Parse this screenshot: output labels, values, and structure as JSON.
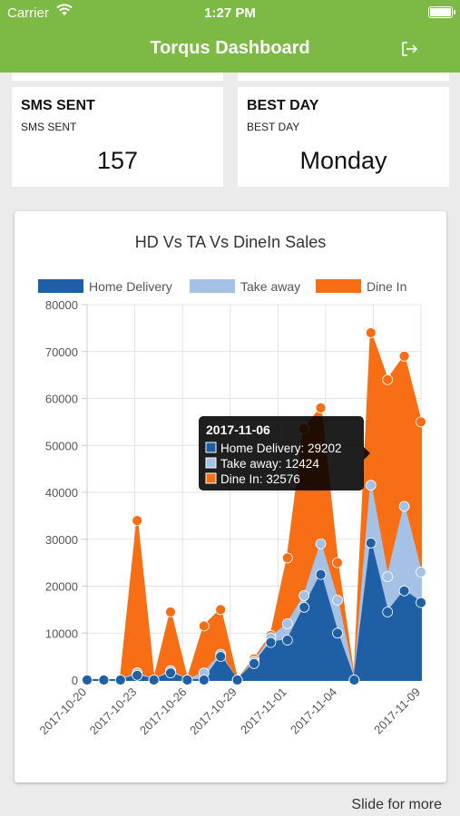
{
  "status_bar": {
    "carrier": "Carrier",
    "time": "1:27 PM"
  },
  "header": {
    "title": "Torqus Dashboard",
    "logout_icon": "logout-icon"
  },
  "cards": [
    {
      "title": "SMS SENT",
      "subtitle": "SMS SENT",
      "value": "157"
    },
    {
      "title": "BEST DAY",
      "subtitle": "BEST DAY",
      "value": "Monday"
    }
  ],
  "footer": {
    "slide_hint": "Slide for more"
  },
  "colors": {
    "brand": "#7dba45",
    "home_delivery": "#1f5fa5",
    "take_away": "#a6c1e6",
    "dine_in": "#f86e14"
  },
  "chart_data": {
    "type": "area",
    "title": "HD Vs TA Vs DineIn Sales",
    "legend_position": "top",
    "grid": true,
    "ylim": [
      0,
      80000
    ],
    "yticks": [
      0,
      10000,
      20000,
      30000,
      40000,
      50000,
      60000,
      70000,
      80000
    ],
    "xtick_labels": [
      "2017-10-20",
      "2017-10-23",
      "2017-10-26",
      "2017-10-29",
      "2017-11-01",
      "2017-11-04",
      "2017-11-09"
    ],
    "x": [
      "2017-10-20",
      "2017-10-21",
      "2017-10-22",
      "2017-10-23",
      "2017-10-24",
      "2017-10-25",
      "2017-10-26",
      "2017-10-27",
      "2017-10-28",
      "2017-10-29",
      "2017-10-30",
      "2017-10-31",
      "2017-11-01",
      "2017-11-02",
      "2017-11-03",
      "2017-11-04",
      "2017-11-05",
      "2017-11-06",
      "2017-11-07",
      "2017-11-08",
      "2017-11-09"
    ],
    "series": [
      {
        "name": "Home Delivery",
        "color": "#1f5fa5",
        "values": [
          0,
          0,
          0,
          1000,
          0,
          1500,
          0,
          0,
          5000,
          0,
          3500,
          8000,
          8500,
          15500,
          22500,
          10000,
          0,
          29202,
          14500,
          19000,
          16500
        ]
      },
      {
        "name": "Take away",
        "color": "#a6c1e6",
        "values": [
          0,
          0,
          0,
          1500,
          0,
          2000,
          0,
          1500,
          5500,
          0,
          4000,
          9000,
          12000,
          18000,
          29000,
          17000,
          0,
          41500,
          22000,
          37000,
          23000
        ]
      },
      {
        "name": "Dine In",
        "color": "#f86e14",
        "values": [
          0,
          0,
          0,
          34000,
          0,
          14500,
          0,
          11500,
          15000,
          0,
          4500,
          9500,
          26000,
          53500,
          58000,
          25000,
          0,
          74000,
          64000,
          69000,
          55000
        ]
      }
    ],
    "tooltip": {
      "date": "2017-11-06",
      "lines": [
        "Home Delivery: 29202",
        "Take away: 12424",
        "Dine In: 32576"
      ]
    }
  }
}
